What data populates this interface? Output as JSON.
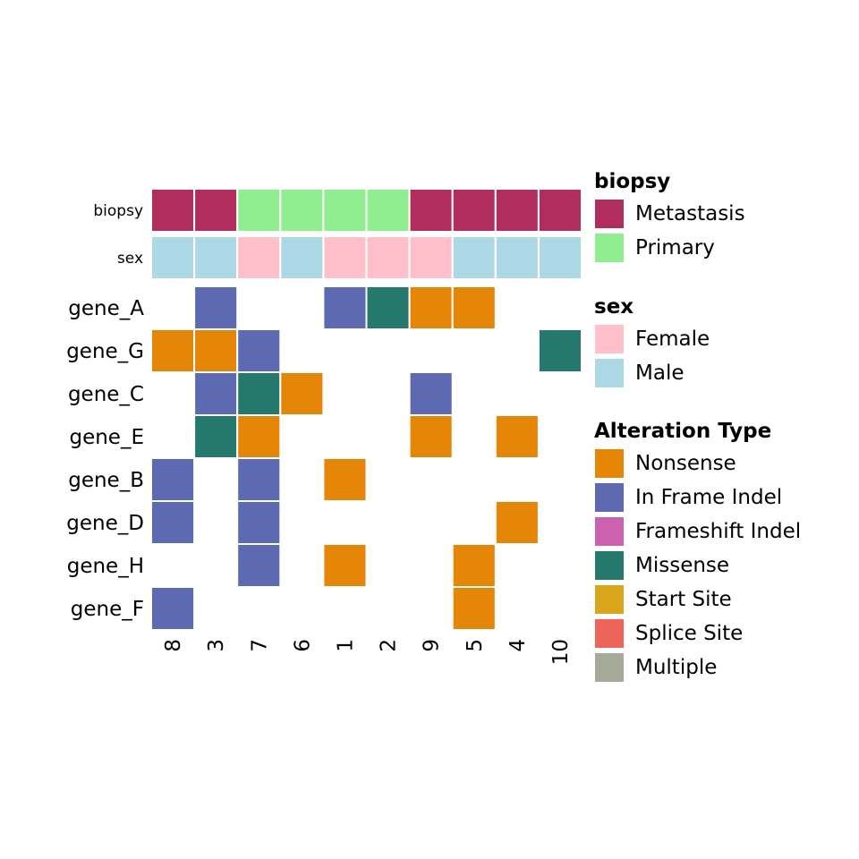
{
  "chart_data": {
    "type": "heatmap",
    "samples": [
      "8",
      "3",
      "7",
      "6",
      "1",
      "2",
      "9",
      "5",
      "4",
      "10"
    ],
    "genes": [
      "gene_A",
      "gene_G",
      "gene_C",
      "gene_E",
      "gene_B",
      "gene_D",
      "gene_H",
      "gene_F"
    ],
    "annotations": [
      {
        "name": "biopsy",
        "values": [
          "Metastasis",
          "Metastasis",
          "Primary",
          "Primary",
          "Primary",
          "Primary",
          "Metastasis",
          "Metastasis",
          "Metastasis",
          "Metastasis"
        ]
      },
      {
        "name": "sex",
        "values": [
          "Male",
          "Male",
          "Female",
          "Male",
          "Female",
          "Female",
          "Female",
          "Male",
          "Male",
          "Male"
        ]
      }
    ],
    "alterations": [
      [
        "",
        "In Frame Indel",
        "",
        "",
        "In Frame Indel",
        "Missense",
        "Nonsense",
        "Nonsense",
        "",
        ""
      ],
      [
        "Nonsense",
        "Nonsense",
        "In Frame Indel",
        "",
        "",
        "",
        "",
        "",
        "",
        "Missense"
      ],
      [
        "",
        "In Frame Indel",
        "Missense",
        "Nonsense",
        "",
        "",
        "In Frame Indel",
        "",
        "",
        ""
      ],
      [
        "",
        "Missense",
        "Nonsense",
        "",
        "",
        "",
        "Nonsense",
        "",
        "Nonsense",
        ""
      ],
      [
        "In Frame Indel",
        "",
        "In Frame Indel",
        "",
        "Nonsense",
        "",
        "",
        "",
        "",
        ""
      ],
      [
        "In Frame Indel",
        "",
        "In Frame Indel",
        "",
        "",
        "",
        "",
        "",
        "Nonsense",
        ""
      ],
      [
        "",
        "",
        "In Frame Indel",
        "",
        "Nonsense",
        "",
        "",
        "Nonsense",
        "",
        ""
      ],
      [
        "In Frame Indel",
        "",
        "",
        "",
        "",
        "",
        "",
        "Nonsense",
        "",
        ""
      ]
    ],
    "legend_position": "right"
  },
  "legends": {
    "biopsy": {
      "title": "biopsy",
      "items": [
        {
          "label": "Metastasis",
          "color": "#B02D5E"
        },
        {
          "label": "Primary",
          "color": "#90EE90"
        }
      ]
    },
    "sex": {
      "title": "sex",
      "items": [
        {
          "label": "Female",
          "color": "#FFC0CB"
        },
        {
          "label": "Male",
          "color": "#ADD8E6"
        }
      ]
    },
    "alteration": {
      "title": "Alteration Type",
      "items": [
        {
          "label": "Nonsense",
          "color": "#E58606"
        },
        {
          "label": "In Frame Indel",
          "color": "#5D69B1"
        },
        {
          "label": "Frameshift Indel",
          "color": "#CC61B0"
        },
        {
          "label": "Missense",
          "color": "#24796C"
        },
        {
          "label": "Start Site",
          "color": "#DAA51B"
        },
        {
          "label": "Splice Site",
          "color": "#ED645A"
        },
        {
          "label": "Multiple",
          "color": "#A5AA99"
        }
      ]
    }
  }
}
